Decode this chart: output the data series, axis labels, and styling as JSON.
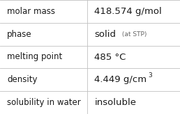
{
  "rows": [
    {
      "label": "molar mass",
      "value": "418.574 g/mol",
      "suffix": null,
      "superscript": null
    },
    {
      "label": "phase",
      "value": "solid",
      "suffix": " (at STP)",
      "superscript": null
    },
    {
      "label": "melting point",
      "value": "485 °C",
      "suffix": null,
      "superscript": null
    },
    {
      "label": "density",
      "value": "4.449 g/cm",
      "suffix": null,
      "superscript": "3"
    },
    {
      "label": "solubility in water",
      "value": "insoluble",
      "suffix": null,
      "superscript": null
    }
  ],
  "col_split": 0.485,
  "bg_color": "#ffffff",
  "line_color": "#c0c0c0",
  "label_fontsize": 8.5,
  "value_fontsize": 9.5,
  "suffix_fontsize": 6.5,
  "super_fontsize": 6.5,
  "text_color": "#1a1a1a",
  "suffix_color": "#666666",
  "fig_width": 2.58,
  "fig_height": 1.64,
  "dpi": 100
}
